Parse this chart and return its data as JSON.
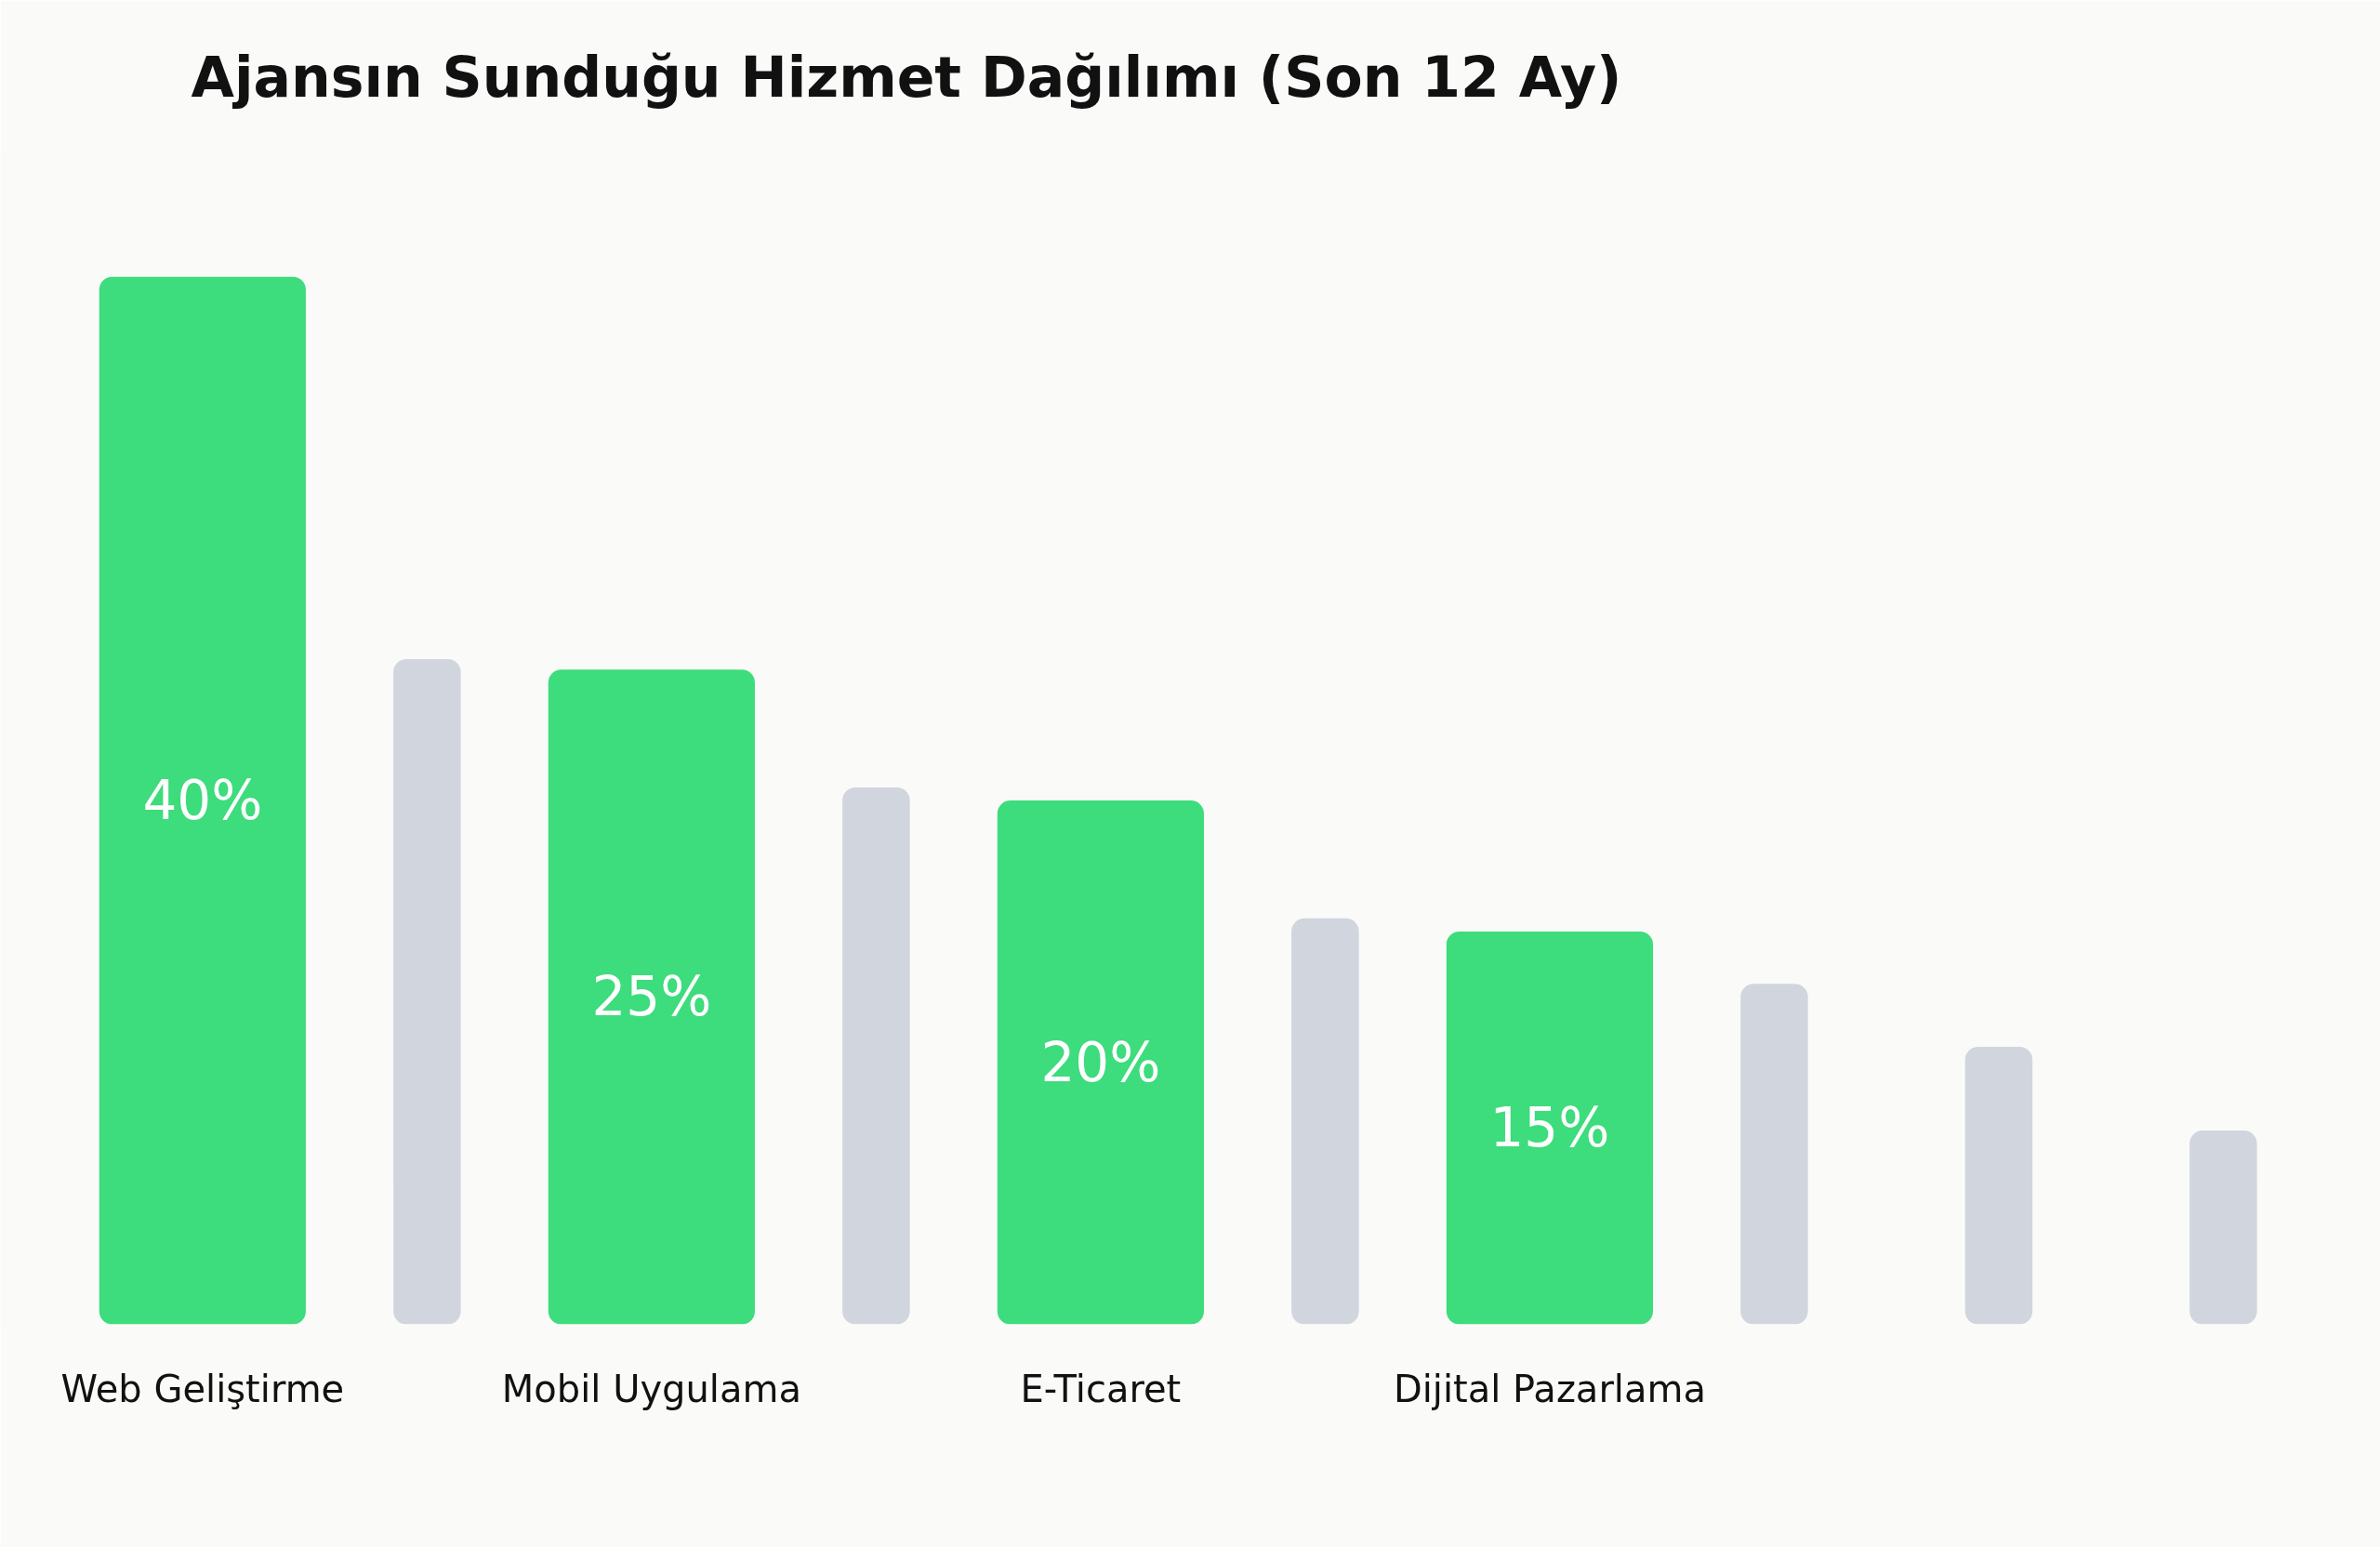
{
  "chart_data": {
    "type": "bar",
    "title": "Ajansın Sunduğu Hizmet Dağılımı (Son 12 Ay)",
    "categories": [
      "Web Geliştirme",
      null,
      "Mobil Uygulama",
      null,
      "E-Ticaret",
      null,
      "Dijital Pazarlama",
      null,
      null,
      null
    ],
    "values": [
      40,
      25.4,
      25,
      20.5,
      20,
      15.5,
      15,
      13,
      10.6,
      7.4
    ],
    "colors": [
      "#3ddc7c",
      "#d1d5de",
      "#3ddc7c",
      "#d1d5de",
      "#3ddc7c",
      "#d1d5de",
      "#3ddc7c",
      "#d1d5de",
      "#d1d5de",
      "#d1d5de"
    ],
    "value_labels": [
      "40%",
      null,
      "25%",
      null,
      "20%",
      null,
      "15%",
      null,
      null,
      null
    ],
    "grid": false
  }
}
